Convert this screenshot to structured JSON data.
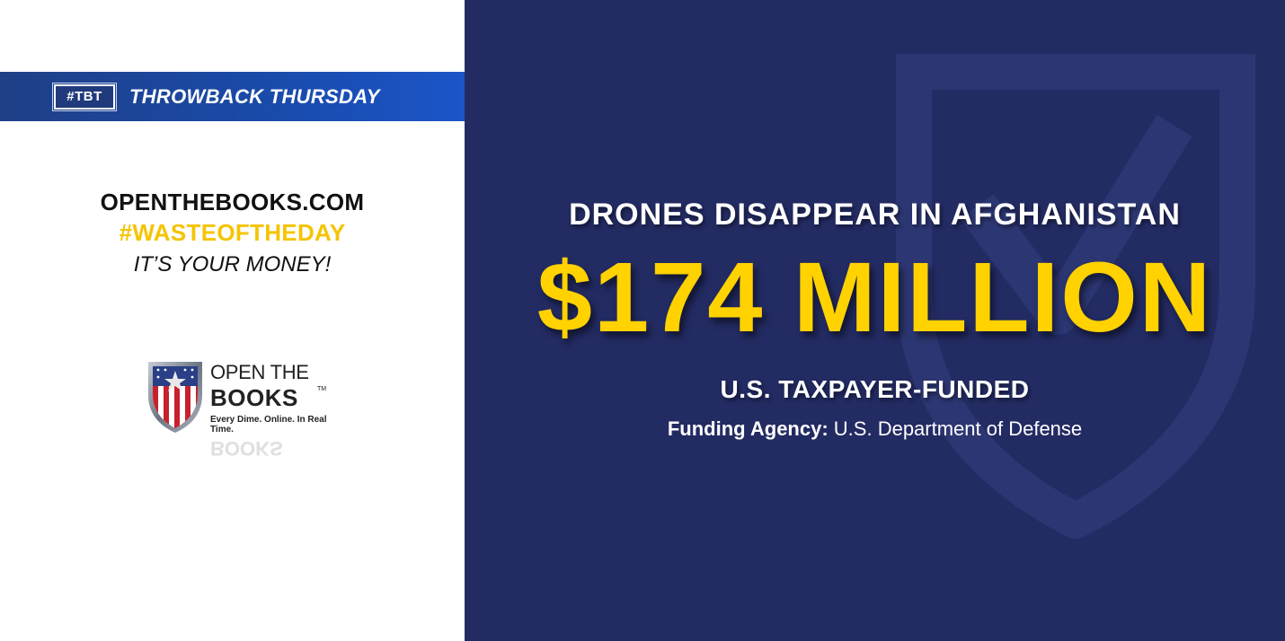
{
  "banner": {
    "badge": "#TBT",
    "title": "THROWBACK THURSDAY"
  },
  "left": {
    "site_name": "OPENTHEBOOKS.COM",
    "hashtag": "#WASTEOFTHEDAY",
    "tagline": "IT’S YOUR MONEY!"
  },
  "logo": {
    "line1": "OPEN THE",
    "line2": "BOOKS",
    "trademark": "TM",
    "slogan": "Every Dime. Online. In Real Time."
  },
  "main": {
    "headline": "DRONES DISAPPEAR IN AFGHANISTAN",
    "amount": "$174 MILLION",
    "funded_by": "U.S. TAXPAYER-FUNDED",
    "agency_label": "Funding Agency:",
    "agency_value": "U.S. Department of Defense"
  },
  "colors": {
    "navy": "#232b63",
    "gold": "#ffd200",
    "banner_blue": "#1a4aa8"
  }
}
